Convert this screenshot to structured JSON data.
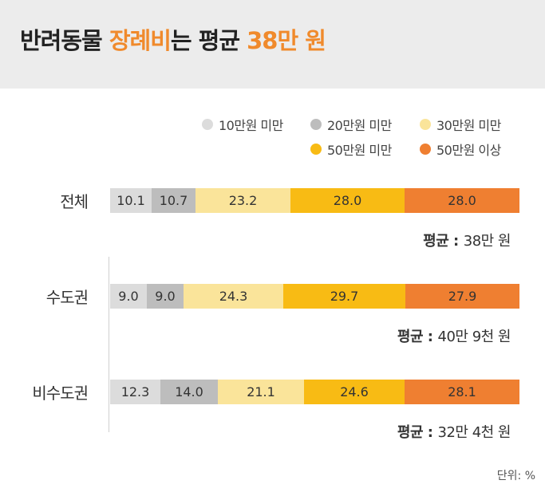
{
  "title": {
    "part1": "반려동물 ",
    "highlight1": "장례비",
    "part2": "는 평균 ",
    "highlight2": "38만 원"
  },
  "colors": {
    "accent": "#f08a2c",
    "categories": [
      "#dcdcdc",
      "#bdbdbd",
      "#fae49a",
      "#f8bb14",
      "#ef7f31"
    ]
  },
  "chart_data": {
    "type": "bar",
    "orientation": "horizontal",
    "stacked": true,
    "title": "반려동물 장례비는 평균 38만 원",
    "unit_label": "단위: %",
    "categories": [
      "전체",
      "수도권",
      "비수도권"
    ],
    "series": [
      {
        "name": "10만원 미만",
        "values": [
          10.1,
          9.0,
          12.3
        ]
      },
      {
        "name": "20만원 미만",
        "values": [
          10.7,
          9.0,
          14.0
        ]
      },
      {
        "name": "30만원 미만",
        "values": [
          23.2,
          24.3,
          21.1
        ]
      },
      {
        "name": "50만원 미만",
        "values": [
          28.0,
          29.7,
          24.6
        ]
      },
      {
        "name": "50만원 이상",
        "values": [
          28.0,
          27.9,
          28.1
        ]
      }
    ],
    "value_labels": [
      [
        "10.1",
        "10.7",
        "23.2",
        "28.0",
        "28.0"
      ],
      [
        "9.0",
        "9.0",
        "24.3",
        "29.7",
        "27.9"
      ],
      [
        "12.3",
        "14.0",
        "21.1",
        "24.6",
        "28.1"
      ]
    ],
    "averages": [
      {
        "label": "평균 :",
        "value": "38만 원"
      },
      {
        "label": "평균 :",
        "value": "40만 9천 원"
      },
      {
        "label": "평균 :",
        "value": "32만 4천 원"
      }
    ],
    "legend": "top-right"
  }
}
